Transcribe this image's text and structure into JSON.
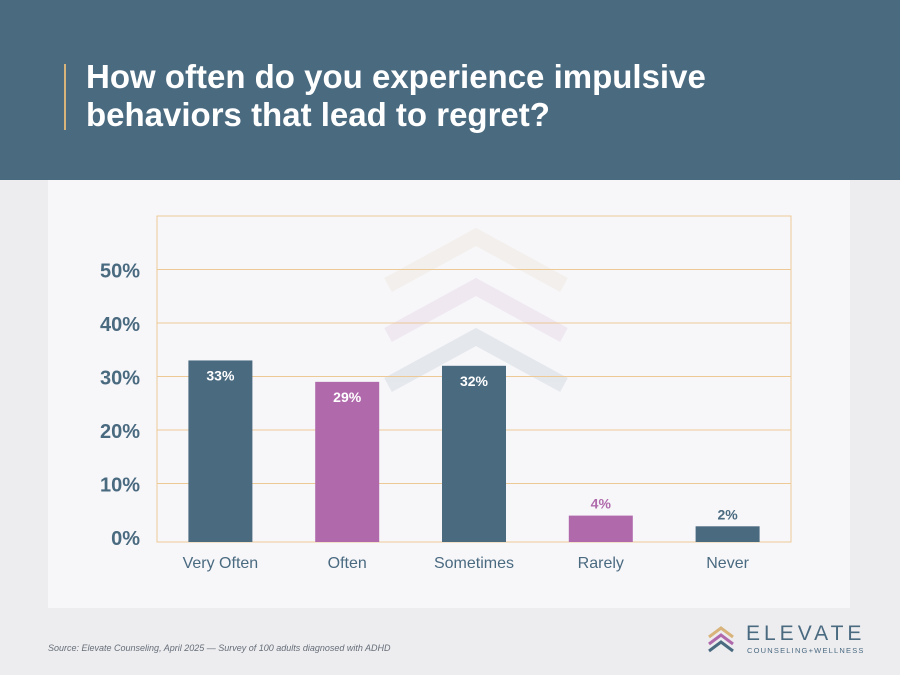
{
  "header": {
    "title": "How often do you experience impulsive behaviors that lead to regret?"
  },
  "chart_data": {
    "type": "bar",
    "categories": [
      "Very Often",
      "Often",
      "Sometimes",
      "Rarely",
      "Never"
    ],
    "values": [
      33,
      29,
      32,
      4,
      2
    ],
    "value_labels": [
      "33%",
      "29%",
      "32%",
      "4%",
      "2%"
    ],
    "bar_colors": [
      "#4a6a80",
      "#b06aac",
      "#4a6a80",
      "#b06aac",
      "#4a6a80"
    ],
    "ylim": [
      0,
      60
    ],
    "yticks": [
      0,
      10,
      20,
      30,
      40,
      50
    ],
    "ytick_labels": [
      "0%",
      "10%",
      "20%",
      "30%",
      "40%",
      "50%"
    ],
    "grid": true,
    "grid_color": "#ecc995",
    "title": "",
    "xlabel": "",
    "ylabel": ""
  },
  "footer": {
    "source": "Source: Elevate Counseling, April 2025 — Survey of 100 adults diagnosed with ADHD"
  },
  "logo": {
    "brand": "ELEVATE",
    "tagline": "COUNSELING+WELLNESS",
    "icon": "stacked-chevrons-icon",
    "colors": [
      "#d9b47a",
      "#b06aac",
      "#4a6a80"
    ]
  },
  "colors": {
    "header_bg": "#4a6a80",
    "accent": "#d9b47a",
    "primary": "#4a6a80",
    "secondary": "#b06aac"
  }
}
